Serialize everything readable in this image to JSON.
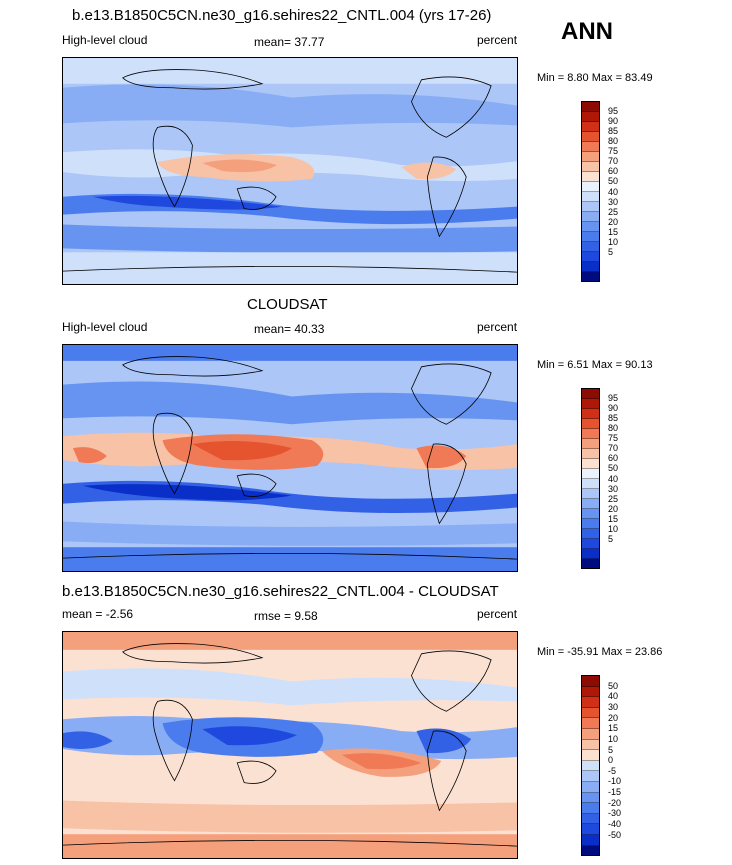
{
  "season": "ANN",
  "colors": {
    "abs": [
      "#000c7d",
      "#0a2fc8",
      "#1f48de",
      "#3361e6",
      "#4b7ced",
      "#6794f1",
      "#88adf4",
      "#abc6f7",
      "#cfe0fb",
      "#eaf2fd",
      "#fbe1d2",
      "#f8c2a6",
      "#f5a07d",
      "#ef7a55",
      "#e5532f",
      "#d03116",
      "#af1707",
      "#8c0b03"
    ],
    "diff": [
      "#000c7d",
      "#0a2fc8",
      "#1f48de",
      "#3361e6",
      "#4b7ced",
      "#6794f1",
      "#88adf4",
      "#abc6f7",
      "#cfe0fb",
      "#fbe1d2",
      "#f8c2a6",
      "#f5a07d",
      "#ef7a55",
      "#e5532f",
      "#d03116",
      "#af1707",
      "#8c0b03"
    ]
  },
  "panels": [
    {
      "title": "b.e13.B1850C5CN.ne30_g16.sehires22_CNTL.004 (yrs 17-26)",
      "left_label": "High-level cloud",
      "center_label": "mean=  37.77",
      "right_label": "percent",
      "minmax": "Min =   8.80 Max =  83.49",
      "levels": [
        "95",
        "90",
        "85",
        "80",
        "75",
        "70",
        "60",
        "50",
        "40",
        "30",
        "25",
        "20",
        "15",
        "10",
        "5"
      ]
    },
    {
      "title": "CLOUDSAT",
      "left_label": "High-level cloud",
      "center_label": "mean=  40.33",
      "right_label": "percent",
      "minmax": "Min =   6.51 Max =  90.13",
      "levels": [
        "95",
        "90",
        "85",
        "80",
        "75",
        "70",
        "60",
        "50",
        "40",
        "30",
        "25",
        "20",
        "15",
        "10",
        "5"
      ]
    },
    {
      "title": "b.e13.B1850C5CN.ne30_g16.sehires22_CNTL.004 - CLOUDSAT",
      "left_label": "mean =  -2.56",
      "center_label": "rmse =    9.58",
      "right_label": "percent",
      "minmax": "Min = -35.91 Max =  23.86",
      "levels": [
        "50",
        "40",
        "30",
        "20",
        "15",
        "10",
        "5",
        "0",
        "-5",
        "-10",
        "-15",
        "-20",
        "-30",
        "-40",
        "-50"
      ]
    }
  ]
}
